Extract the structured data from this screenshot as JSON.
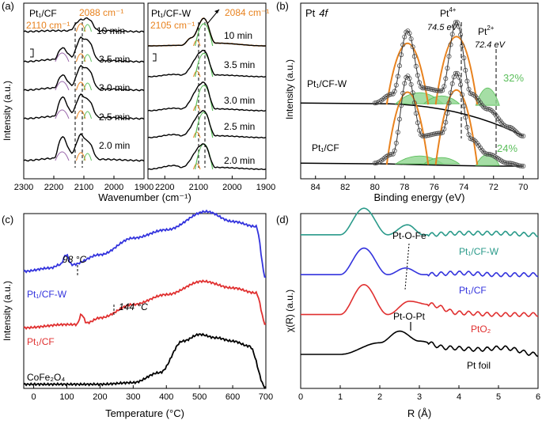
{
  "panels": {
    "a": {
      "label": "(a)",
      "xlabel": "Wavenumber (cm⁻¹)",
      "ylabel": "Intensity (a.u.)",
      "left": {
        "name": "Pt₁/CF",
        "ann1": "2088 cm⁻¹",
        "ann2": "2110 cm⁻¹",
        "times": [
          "10 min",
          "3.5 min",
          "3.0 min",
          "2.5 min",
          "2.0 min"
        ],
        "xticks": [
          "2300",
          "2200",
          "2100",
          "2000",
          "1900"
        ]
      },
      "right": {
        "name": "Pt₁/CF-W",
        "ann1": "2084 cm⁻¹",
        "ann2": "2105 cm⁻¹",
        "times": [
          "10 min",
          "3.5 min",
          "3.0 min",
          "2.5 min",
          "2.0 min"
        ],
        "xticks": [
          "2200",
          "2100",
          "2000",
          "1900"
        ]
      }
    },
    "b": {
      "label": "(b)",
      "title_elem": "Pt",
      "title_orbital": "4f",
      "xlabel": "Binding energy (eV)",
      "ylabel": "Intensity (a.u.)",
      "xticks": [
        "84",
        "82",
        "80",
        "78",
        "76",
        "74",
        "72",
        "70"
      ],
      "pt4": "Pt",
      "pt4_sup": "4+",
      "pt4_ev": "74.5 eV",
      "pt2": "Pt",
      "pt2_sup": "2+",
      "pt2_ev": "72.4 eV",
      "upper_name": "Pt₁/CF-W",
      "upper_pct": "32%",
      "lower_name": "Pt₁/CF",
      "lower_pct": "24%"
    },
    "c": {
      "label": "(c)",
      "xlabel": "Temperature (°C)",
      "ylabel": "Intensity (a.u.)",
      "xticks": [
        "0",
        "100",
        "200",
        "300",
        "400",
        "500",
        "600",
        "700"
      ],
      "peak1": "98 °C",
      "peak2": "144 °C",
      "names": [
        "Pt₁/CF-W",
        "Pt₁/CF",
        "CoFe₂O₄"
      ]
    },
    "d": {
      "label": "(d)",
      "xlabel": "R (Å)",
      "ylabel": "χ(R) (a.u.)",
      "xticks": [
        "0",
        "1",
        "2",
        "3",
        "4",
        "5",
        "6"
      ],
      "ann1": "Pt-O-Fe",
      "ann2": "Pt-O-Pt",
      "names": [
        "Pt₁/CF-W",
        "Pt₁/CF",
        "PtO₂",
        "Pt foil"
      ]
    }
  },
  "colors": {
    "orange": "#e8821e",
    "green": "#5cbf5c",
    "light_green": "#8fd68f",
    "blue": "#3333dd",
    "red": "#e03030",
    "teal": "#2a9a8a",
    "purple": "#9966aa",
    "black": "#000000"
  },
  "chart_data": [
    {
      "panel": "a-left",
      "type": "line",
      "xlim": [
        2300,
        1900
      ],
      "peak_positions": [
        2110,
        2088
      ],
      "series": [
        {
          "name": "10 min",
          "x": [
            2300,
            2200,
            2150,
            2110,
            2088,
            2050,
            1900
          ],
          "values": [
            0,
            0.02,
            0.02,
            0.25,
            0.28,
            0.02,
            0
          ]
        },
        {
          "name": "3.5 min",
          "x": [
            2300,
            2200,
            2172,
            2140,
            2110,
            2088,
            2050,
            1900
          ],
          "values": [
            0,
            0.05,
            0.32,
            0.12,
            0.55,
            0.5,
            0.03,
            0
          ]
        },
        {
          "name": "3.0 min",
          "x": [
            2300,
            2200,
            2172,
            2140,
            2110,
            2088,
            2050,
            1900
          ],
          "values": [
            0,
            0.05,
            0.35,
            0.12,
            0.55,
            0.5,
            0.03,
            0
          ]
        },
        {
          "name": "2.5 min",
          "x": [
            2300,
            2200,
            2172,
            2140,
            2110,
            2088,
            2050,
            1900
          ],
          "values": [
            0,
            0.05,
            0.5,
            0.15,
            0.55,
            0.45,
            0.03,
            0
          ]
        },
        {
          "name": "2.0 min",
          "x": [
            2300,
            2200,
            2172,
            2140,
            2110,
            2088,
            2050,
            1900
          ],
          "values": [
            0,
            0.05,
            0.55,
            0.18,
            0.6,
            0.45,
            0.03,
            0
          ]
        }
      ]
    },
    {
      "panel": "a-right",
      "type": "line",
      "xlim": [
        2250,
        1900
      ],
      "peak_positions": [
        2105,
        2084
      ],
      "series": [
        {
          "name": "10 min",
          "x": [
            2250,
            2150,
            2120,
            2084,
            2050,
            1900
          ],
          "values": [
            0,
            0.02,
            0.3,
            1.0,
            0.1,
            0
          ]
        },
        {
          "name": "3.5 min",
          "x": [
            2250,
            2170,
            2150,
            2084,
            2050,
            1900
          ],
          "values": [
            0,
            0.08,
            0.06,
            0.9,
            0.06,
            0
          ]
        },
        {
          "name": "3.0 min",
          "x": [
            2250,
            2170,
            2150,
            2084,
            2050,
            1900
          ],
          "values": [
            0,
            0.08,
            0.06,
            0.9,
            0.06,
            0
          ]
        },
        {
          "name": "2.5 min",
          "x": [
            2250,
            2170,
            2150,
            2084,
            2050,
            1900
          ],
          "values": [
            0,
            0.1,
            0.06,
            0.85,
            0.06,
            0
          ]
        },
        {
          "name": "2.0 min",
          "x": [
            2250,
            2170,
            2150,
            2084,
            2050,
            1900
          ],
          "values": [
            0,
            0.12,
            0.06,
            0.8,
            0.06,
            0
          ]
        }
      ]
    },
    {
      "panel": "b",
      "type": "line",
      "xlim": [
        85,
        69
      ],
      "peak_positions": [
        77.8,
        74.5,
        72.4
      ],
      "percentages": {
        "Pt₁/CF-W": 32,
        "Pt₁/CF": 24
      },
      "series": [
        {
          "name": "Pt₁/CF-W",
          "x": [
            85,
            80,
            78.8,
            77.8,
            76.8,
            75.5,
            74.5,
            73.5,
            72.4,
            71,
            70
          ],
          "values": [
            0.42,
            0.42,
            0.48,
            0.9,
            0.52,
            0.5,
            0.96,
            0.48,
            0.38,
            0.26,
            0.2
          ]
        },
        {
          "name": "Pt₁/CF",
          "x": [
            85,
            80,
            78.8,
            77.8,
            76.8,
            75.5,
            74.5,
            73.5,
            72.4,
            71,
            70
          ],
          "values": [
            0.02,
            0.02,
            0.08,
            0.6,
            0.2,
            0.22,
            0.62,
            0.18,
            0.08,
            0.02,
            0
          ]
        }
      ]
    },
    {
      "panel": "c",
      "type": "line",
      "xlim": [
        -30,
        700
      ],
      "peaks": [
        {
          "series": "Pt₁/CF-W",
          "x": 98
        },
        {
          "series": "Pt₁/CF",
          "x": 144
        }
      ],
      "series": [
        {
          "name": "Pt₁/CF-W",
          "x": [
            -30,
            50,
            80,
            98,
            115,
            200,
            300,
            400,
            520,
            600,
            670,
            700
          ],
          "values": [
            0.7,
            0.72,
            0.74,
            0.8,
            0.74,
            0.8,
            0.9,
            0.95,
            1.06,
            1.0,
            0.97,
            0.66
          ]
        },
        {
          "name": "Pt₁/CF",
          "x": [
            -30,
            100,
            130,
            144,
            160,
            200,
            300,
            400,
            510,
            600,
            670,
            700
          ],
          "values": [
            0.36,
            0.38,
            0.38,
            0.44,
            0.39,
            0.42,
            0.5,
            0.56,
            0.64,
            0.6,
            0.57,
            0.38
          ]
        },
        {
          "name": "CoFe₂O₄",
          "x": [
            -30,
            100,
            200,
            300,
            380,
            450,
            500,
            550,
            600,
            650,
            700
          ],
          "values": [
            0.02,
            0.02,
            0.02,
            0.03,
            0.09,
            0.28,
            0.32,
            0.3,
            0.28,
            0.25,
            0.0
          ]
        }
      ]
    },
    {
      "panel": "d",
      "type": "line",
      "xlim": [
        0,
        6
      ],
      "series": [
        {
          "name": "Pt₁/CF-W",
          "x": [
            0,
            1,
            1.6,
            2.2,
            2.7,
            3.1,
            4,
            5,
            6
          ],
          "values": [
            0.92,
            0.92,
            1.08,
            0.92,
            0.98,
            0.92,
            0.93,
            0.93,
            0.92
          ]
        },
        {
          "name": "Pt₁/CF",
          "x": [
            0,
            1,
            1.6,
            2.2,
            2.65,
            3.1,
            4,
            5,
            6
          ],
          "values": [
            0.68,
            0.68,
            0.84,
            0.68,
            0.72,
            0.68,
            0.69,
            0.68,
            0.68
          ]
        },
        {
          "name": "PtO₂",
          "x": [
            0,
            1,
            1.6,
            2.2,
            2.75,
            3.25,
            4,
            5,
            6
          ],
          "values": [
            0.44,
            0.44,
            0.62,
            0.44,
            0.52,
            0.5,
            0.45,
            0.44,
            0.44
          ]
        },
        {
          "name": "Pt foil",
          "x": [
            0,
            1,
            2.0,
            2.5,
            3.0,
            3.7,
            4.5,
            5.1,
            6
          ],
          "values": [
            0.2,
            0.2,
            0.27,
            0.34,
            0.28,
            0.24,
            0.23,
            0.24,
            0.2
          ]
        }
      ]
    }
  ]
}
